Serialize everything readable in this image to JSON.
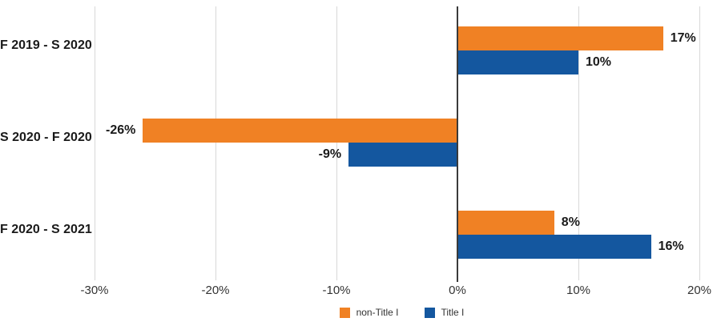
{
  "chart_data": {
    "type": "bar",
    "orientation": "horizontal",
    "title": "",
    "categories": [
      "F 2019 - S 2020",
      "S 2020 - F 2020",
      "F 2020 - S 2021"
    ],
    "series": [
      {
        "name": "non-Title I",
        "color": "#f08124",
        "values": [
          17,
          -26,
          8
        ],
        "value_labels": [
          "17%",
          "-26%",
          "8%"
        ]
      },
      {
        "name": "Title I",
        "color": "#14579f",
        "values": [
          10,
          -9,
          16
        ],
        "value_labels": [
          "10%",
          "-9%",
          "16%"
        ]
      }
    ],
    "x_axis": {
      "unit": "%",
      "min": -30,
      "max": 20,
      "ticks": [
        -30,
        -20,
        -10,
        0,
        10,
        20
      ],
      "tick_labels": [
        "-30%",
        "-20%",
        "-10%",
        "0%",
        "10%",
        "20%"
      ]
    },
    "grid": true,
    "legend_position": "bottom"
  },
  "colors": {
    "gridline": "#d8d8d8",
    "zero_axis": "#3a3a3a",
    "label_text": "#1a1a1a",
    "tick_text": "#333333",
    "background": "#ffffff"
  }
}
